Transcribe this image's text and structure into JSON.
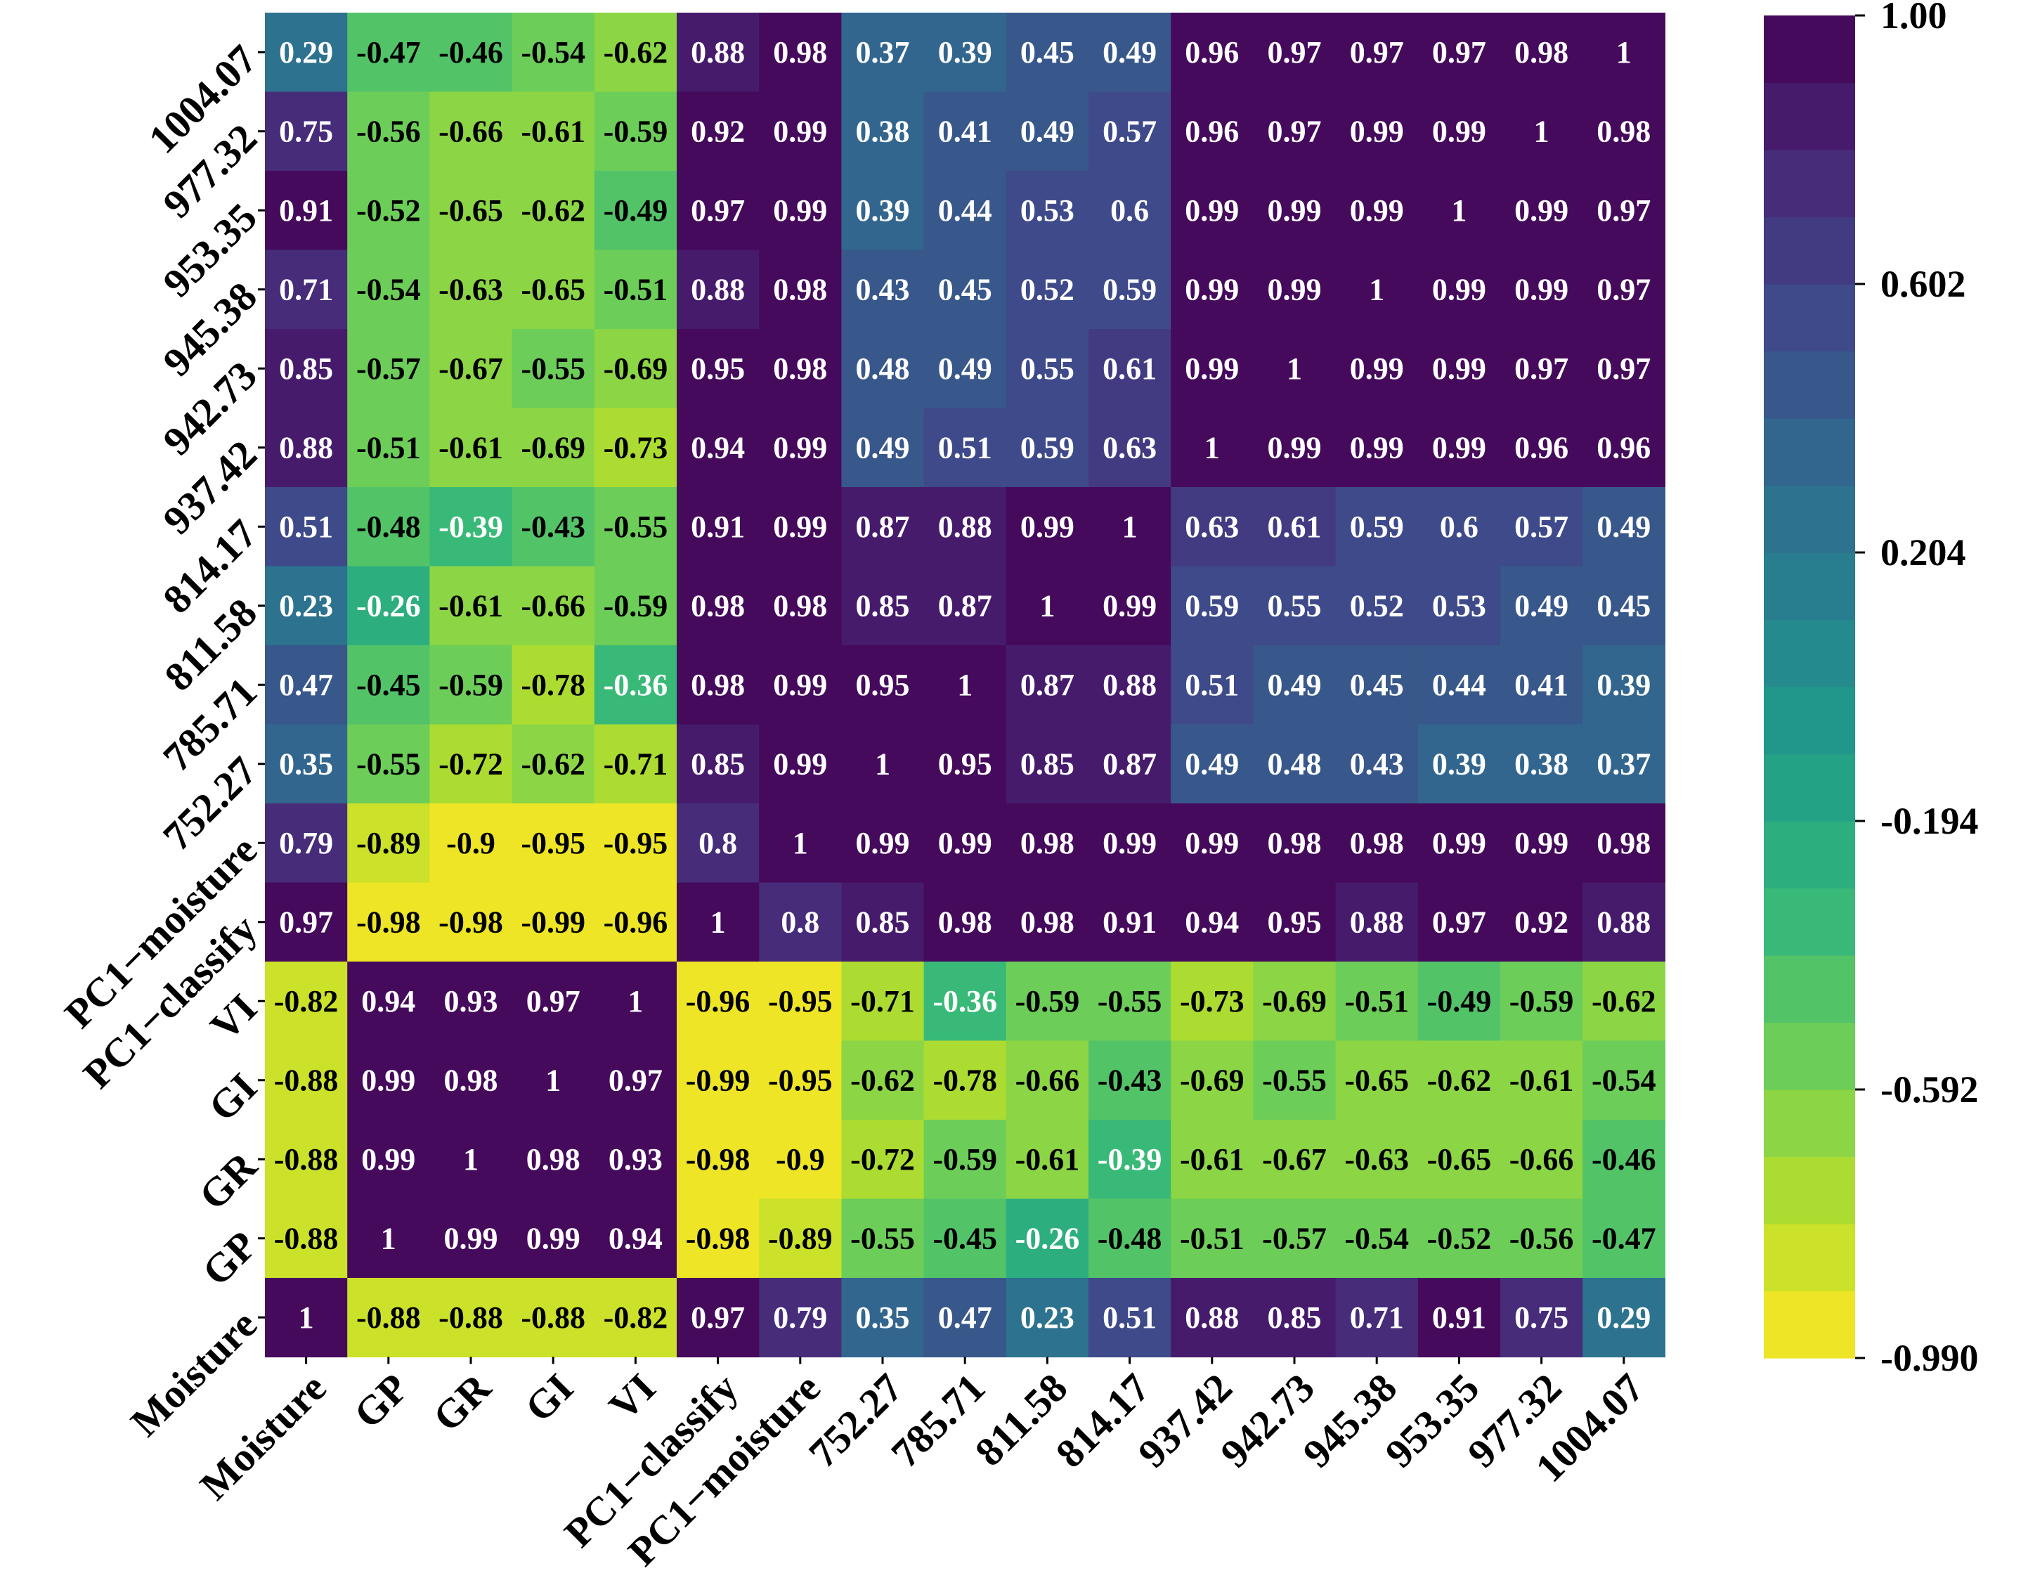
{
  "chart_data": {
    "type": "heatmap",
    "title": "",
    "xlabel": "",
    "ylabel": "",
    "x_labels": [
      "Moisture",
      "GP",
      "GR",
      "GI",
      "VI",
      "PC1−classify",
      "PC1−moisture",
      "752.27",
      "785.71",
      "811.58",
      "814.17",
      "937.42",
      "942.73",
      "945.38",
      "953.35",
      "977.32",
      "1004.07"
    ],
    "y_labels": [
      "1004.07",
      "977.32",
      "953.35",
      "945.38",
      "942.73",
      "937.42",
      "814.17",
      "811.58",
      "785.71",
      "752.27",
      "PC1−moisture",
      "PC1−classify",
      "VI",
      "GI",
      "GR",
      "GP",
      "Moisture"
    ],
    "values": [
      [
        0.29,
        -0.47,
        -0.46,
        -0.54,
        -0.62,
        0.88,
        0.98,
        0.37,
        0.39,
        0.45,
        0.49,
        0.96,
        0.97,
        0.97,
        0.97,
        0.98,
        1
      ],
      [
        0.75,
        -0.56,
        -0.66,
        -0.61,
        -0.59,
        0.92,
        0.99,
        0.38,
        0.41,
        0.49,
        0.57,
        0.96,
        0.97,
        0.99,
        0.99,
        1,
        0.98
      ],
      [
        0.91,
        -0.52,
        -0.65,
        -0.62,
        -0.49,
        0.97,
        0.99,
        0.39,
        0.44,
        0.53,
        0.6,
        0.99,
        0.99,
        0.99,
        1,
        0.99,
        0.97
      ],
      [
        0.71,
        -0.54,
        -0.63,
        -0.65,
        -0.51,
        0.88,
        0.98,
        0.43,
        0.45,
        0.52,
        0.59,
        0.99,
        0.99,
        1,
        0.99,
        0.99,
        0.97
      ],
      [
        0.85,
        -0.57,
        -0.67,
        -0.55,
        -0.69,
        0.95,
        0.98,
        0.48,
        0.49,
        0.55,
        0.61,
        0.99,
        1,
        0.99,
        0.99,
        0.97,
        0.97
      ],
      [
        0.88,
        -0.51,
        -0.61,
        -0.69,
        -0.73,
        0.94,
        0.99,
        0.49,
        0.51,
        0.59,
        0.63,
        1,
        0.99,
        0.99,
        0.99,
        0.96,
        0.96
      ],
      [
        0.51,
        -0.48,
        -0.39,
        -0.43,
        -0.55,
        0.91,
        0.99,
        0.87,
        0.88,
        0.99,
        1,
        0.63,
        0.61,
        0.59,
        0.6,
        0.57,
        0.49
      ],
      [
        0.23,
        -0.26,
        -0.61,
        -0.66,
        -0.59,
        0.98,
        0.98,
        0.85,
        0.87,
        1,
        0.99,
        0.59,
        0.55,
        0.52,
        0.53,
        0.49,
        0.45
      ],
      [
        0.47,
        -0.45,
        -0.59,
        -0.78,
        -0.36,
        0.98,
        0.99,
        0.95,
        1,
        0.87,
        0.88,
        0.51,
        0.49,
        0.45,
        0.44,
        0.41,
        0.39
      ],
      [
        0.35,
        -0.55,
        -0.72,
        -0.62,
        -0.71,
        0.85,
        0.99,
        1,
        0.95,
        0.85,
        0.87,
        0.49,
        0.48,
        0.43,
        0.39,
        0.38,
        0.37
      ],
      [
        0.79,
        -0.89,
        -0.9,
        -0.95,
        -0.95,
        0.8,
        1,
        0.99,
        0.99,
        0.98,
        0.99,
        0.99,
        0.98,
        0.98,
        0.99,
        0.99,
        0.98
      ],
      [
        0.97,
        -0.98,
        -0.98,
        -0.99,
        -0.96,
        1,
        0.8,
        0.85,
        0.98,
        0.98,
        0.91,
        0.94,
        0.95,
        0.88,
        0.97,
        0.92,
        0.88
      ],
      [
        -0.82,
        0.94,
        0.93,
        0.97,
        1,
        -0.96,
        -0.95,
        -0.71,
        -0.36,
        -0.59,
        -0.55,
        -0.73,
        -0.69,
        -0.51,
        -0.49,
        -0.59,
        -0.62
      ],
      [
        -0.88,
        0.99,
        0.98,
        1,
        0.97,
        -0.99,
        -0.95,
        -0.62,
        -0.78,
        -0.66,
        -0.43,
        -0.69,
        -0.55,
        -0.65,
        -0.62,
        -0.61,
        -0.54
      ],
      [
        -0.88,
        0.99,
        1,
        0.98,
        0.93,
        -0.98,
        -0.9,
        -0.72,
        -0.59,
        -0.61,
        -0.39,
        -0.61,
        -0.67,
        -0.63,
        -0.65,
        -0.66,
        -0.46
      ],
      [
        -0.88,
        1,
        0.99,
        0.99,
        0.94,
        -0.98,
        -0.89,
        -0.55,
        -0.45,
        -0.26,
        -0.48,
        -0.51,
        -0.57,
        -0.54,
        -0.52,
        -0.56,
        -0.47
      ],
      [
        1,
        -0.88,
        -0.88,
        -0.88,
        -0.82,
        0.97,
        0.79,
        0.35,
        0.47,
        0.23,
        0.51,
        0.88,
        0.85,
        0.71,
        0.91,
        0.75,
        0.29
      ]
    ],
    "colormap": "viridis_r",
    "vmin": -0.99,
    "vmax": 1.0,
    "n_color_levels": 20,
    "colorbar": {
      "ticks": [
        1.0,
        0.602,
        0.204,
        -0.194,
        -0.592,
        -0.99
      ],
      "tick_labels": [
        "1.00",
        "0.602",
        "0.204",
        "-0.194",
        "-0.592",
        "-0.990"
      ],
      "placement": "right"
    },
    "viridis_stops": [
      "#440154",
      "#482878",
      "#3e4989",
      "#31688e",
      "#26828e",
      "#1f9e89",
      "#35b779",
      "#6ece58",
      "#b5de2b",
      "#fde725"
    ]
  }
}
